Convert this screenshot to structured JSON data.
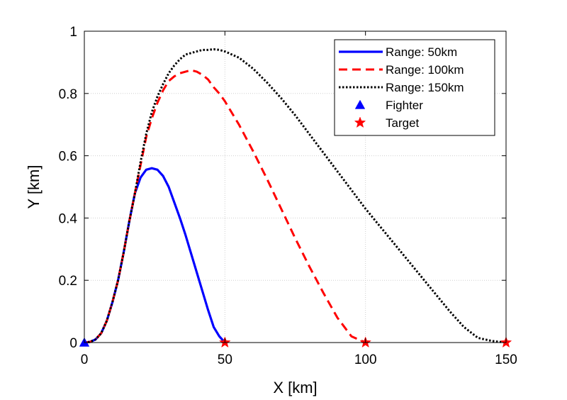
{
  "chart_data": {
    "type": "line",
    "title": "",
    "xlabel": "X [km]",
    "ylabel": "Y [km]",
    "xlim": [
      0,
      150
    ],
    "ylim": [
      0,
      1
    ],
    "xticks": [
      "0",
      "50",
      "100",
      "150"
    ],
    "yticks": [
      "0",
      "0.2",
      "0.4",
      "0.6",
      "0.8",
      "1"
    ],
    "grid": true,
    "legend_position": "top-right",
    "series": [
      {
        "name": "Range: 50km",
        "color": "#0000ff",
        "style": "solid",
        "x": [
          0,
          2,
          4,
          6,
          8,
          10,
          12,
          14,
          16,
          18,
          20,
          22,
          24,
          26,
          28,
          30,
          32,
          34,
          36,
          38,
          40,
          42,
          44,
          46,
          48,
          50
        ],
        "y": [
          0,
          0.002,
          0.01,
          0.03,
          0.07,
          0.13,
          0.2,
          0.29,
          0.39,
          0.48,
          0.53,
          0.555,
          0.56,
          0.555,
          0.535,
          0.5,
          0.45,
          0.4,
          0.345,
          0.285,
          0.225,
          0.165,
          0.105,
          0.05,
          0.02,
          0
        ]
      },
      {
        "name": "Range: 100km",
        "color": "#ff0000",
        "style": "dashed",
        "x": [
          0,
          2,
          4,
          6,
          8,
          10,
          12,
          14,
          16,
          18,
          20,
          22,
          24,
          26,
          28,
          30,
          32,
          34,
          36,
          38,
          40,
          42,
          44,
          46,
          48,
          50,
          55,
          60,
          65,
          70,
          75,
          80,
          85,
          90,
          95,
          100
        ],
        "y": [
          0,
          0.002,
          0.01,
          0.03,
          0.07,
          0.13,
          0.2,
          0.29,
          0.39,
          0.48,
          0.57,
          0.66,
          0.72,
          0.77,
          0.81,
          0.84,
          0.855,
          0.865,
          0.87,
          0.875,
          0.87,
          0.86,
          0.845,
          0.82,
          0.8,
          0.775,
          0.7,
          0.615,
          0.525,
          0.43,
          0.335,
          0.245,
          0.16,
          0.08,
          0.02,
          0
        ]
      },
      {
        "name": "Range: 150km",
        "color": "#000000",
        "style": "dotted",
        "x": [
          0,
          2,
          4,
          6,
          8,
          10,
          12,
          14,
          16,
          18,
          20,
          22,
          24,
          26,
          28,
          30,
          32,
          34,
          36,
          38,
          40,
          42,
          44,
          46,
          48,
          50,
          55,
          60,
          65,
          70,
          75,
          80,
          85,
          90,
          95,
          100,
          105,
          110,
          115,
          120,
          125,
          130,
          135,
          140,
          145,
          150
        ],
        "y": [
          0,
          0.002,
          0.01,
          0.03,
          0.07,
          0.13,
          0.2,
          0.29,
          0.39,
          0.48,
          0.58,
          0.67,
          0.74,
          0.79,
          0.83,
          0.865,
          0.89,
          0.91,
          0.925,
          0.93,
          0.935,
          0.94,
          0.94,
          0.942,
          0.94,
          0.935,
          0.915,
          0.88,
          0.835,
          0.785,
          0.73,
          0.67,
          0.61,
          0.55,
          0.49,
          0.43,
          0.375,
          0.32,
          0.265,
          0.21,
          0.155,
          0.1,
          0.05,
          0.015,
          0.005,
          0
        ]
      }
    ],
    "markers": [
      {
        "name": "Fighter",
        "color": "#0000ff",
        "shape": "triangle",
        "points": [
          [
            0,
            0
          ]
        ]
      },
      {
        "name": "Target",
        "color": "#ff0000",
        "shape": "star",
        "points": [
          [
            50,
            0
          ],
          [
            100,
            0
          ],
          [
            150,
            0
          ]
        ]
      }
    ]
  }
}
